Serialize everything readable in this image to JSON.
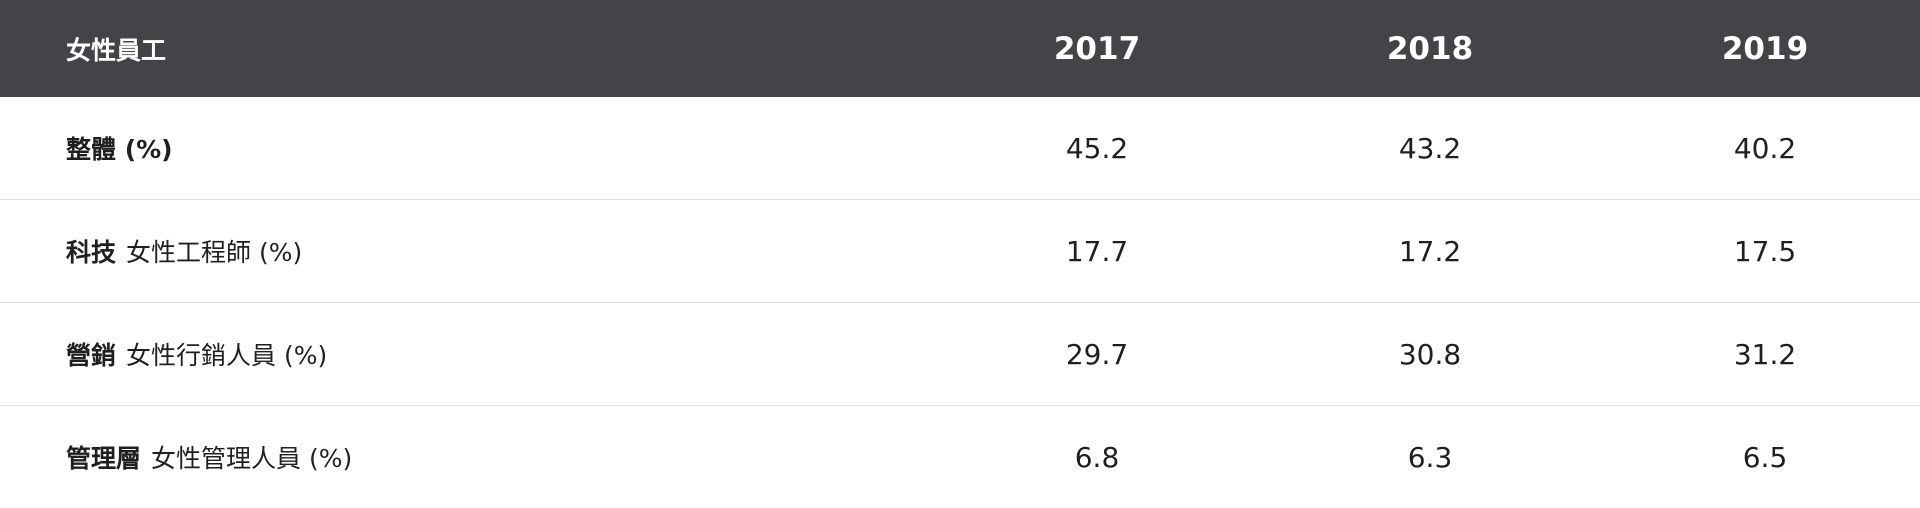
{
  "table": {
    "header": {
      "label": "女性員工",
      "years": [
        "2017",
        "2018",
        "2019"
      ]
    },
    "rows": [
      {
        "category": "整體 (%)",
        "detail": "",
        "values": [
          "45.2",
          "43.2",
          "40.2"
        ]
      },
      {
        "category": "科技",
        "detail": "女性工程師 (%)",
        "values": [
          "17.7",
          "17.2",
          "17.5"
        ]
      },
      {
        "category": "營銷",
        "detail": "女性行銷人員 (%)",
        "values": [
          "29.7",
          "30.8",
          "31.2"
        ]
      },
      {
        "category": "管理層",
        "detail": "女性管理人員 (%)",
        "values": [
          "6.8",
          "6.3",
          "6.5"
        ]
      }
    ]
  },
  "colors": {
    "header_bg": "#434447",
    "header_text": "#ffffff",
    "divider": "#dedede",
    "body_text": "#1f1f1f"
  }
}
